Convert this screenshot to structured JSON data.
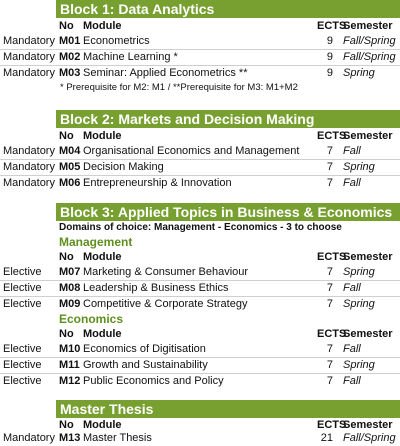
{
  "columns": {
    "no": "No",
    "module": "Module",
    "ects": "ECTS",
    "semester": "Semester"
  },
  "block1": {
    "title": "Block 1: Data Analytics",
    "rows": [
      {
        "type": "Mandatory",
        "no": "M01",
        "module": "Econometrics",
        "ects": "9",
        "semester": "Fall/Spring"
      },
      {
        "type": "Mandatory",
        "no": "M02",
        "module": "Machine Learning *",
        "ects": "9",
        "semester": "Fall/Spring"
      },
      {
        "type": "Mandatory",
        "no": "M03",
        "module": "Seminar: Applied Econometrics **",
        "ects": "9",
        "semester": "Spring"
      }
    ],
    "note": "* Prerequisite for M2: M1 / **Prerequisite for M3: M1+M2"
  },
  "block2": {
    "title": "Block 2: Markets and Decision Making",
    "rows": [
      {
        "type": "Mandatory",
        "no": "M04",
        "module": "Organisational Economics and Management",
        "ects": "7",
        "semester": "Fall"
      },
      {
        "type": "Mandatory",
        "no": "M05",
        "module": "Decision Making",
        "ects": "7",
        "semester": "Spring"
      },
      {
        "type": "Mandatory",
        "no": "M06",
        "module": "Entrepreneurship & Innovation",
        "ects": "7",
        "semester": "Fall"
      }
    ]
  },
  "block3": {
    "title": "Block 3: Applied Topics in Business & Economics",
    "domains": "Domains of choice: Management - Economics - 3 to choose",
    "management": {
      "label": "Management",
      "rows": [
        {
          "type": "Elective",
          "no": "M07",
          "module": "Marketing & Consumer Behaviour",
          "ects": "7",
          "semester": "Spring"
        },
        {
          "type": "Elective",
          "no": "M08",
          "module": "Leadership & Business Ethics",
          "ects": "7",
          "semester": "Fall"
        },
        {
          "type": "Elective",
          "no": "M09",
          "module": "Competitive & Corporate Strategy",
          "ects": "7",
          "semester": "Spring"
        }
      ]
    },
    "economics": {
      "label": "Economics",
      "rows": [
        {
          "type": "Elective",
          "no": "M10",
          "module": "Economics of Digitisation",
          "ects": "7",
          "semester": "Fall"
        },
        {
          "type": "Elective",
          "no": "M11",
          "module": "Growth and Sustainability",
          "ects": "7",
          "semester": "Spring"
        },
        {
          "type": "Elective",
          "no": "M12",
          "module": "Public Economics and Policy",
          "ects": "7",
          "semester": "Fall"
        }
      ]
    }
  },
  "thesis": {
    "title": "Master Thesis",
    "rows": [
      {
        "type": "Mandatory",
        "no": "M13",
        "module": "Master Thesis",
        "ects": "21",
        "semester": "Fall/Spring"
      }
    ]
  },
  "colors": {
    "header_bg": "#77a030",
    "subhead": "#5f8f1f"
  }
}
